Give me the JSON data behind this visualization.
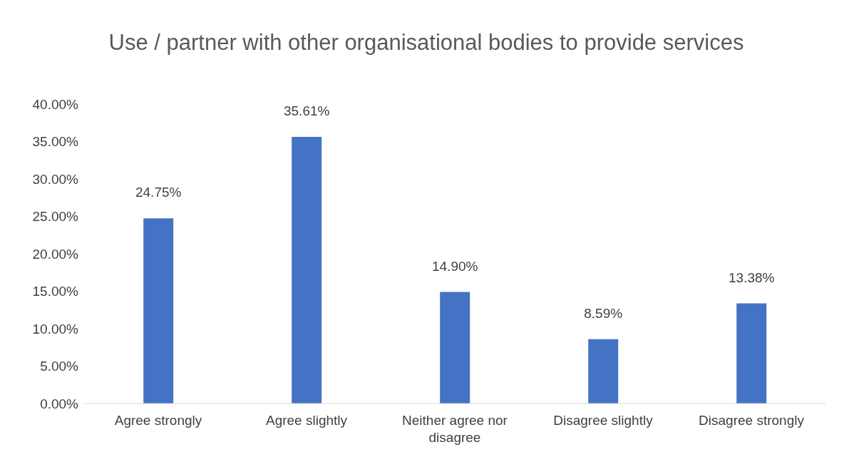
{
  "chart_data": {
    "type": "bar",
    "title": "Use / partner with other organisational bodies to provide services",
    "categories": [
      "Agree strongly",
      "Agree slightly",
      "Neither agree nor disagree",
      "Disagree slightly",
      "Disagree strongly"
    ],
    "values": [
      24.75,
      35.61,
      14.9,
      8.59,
      13.38
    ],
    "value_labels": [
      "24.75%",
      "35.61%",
      "14.90%",
      "8.59%",
      "13.38%"
    ],
    "color": "#4472c4",
    "ylim": [
      0,
      40
    ],
    "yticks": [
      {
        "value": 0,
        "label": "0.00%"
      },
      {
        "value": 5,
        "label": "5.00%"
      },
      {
        "value": 10,
        "label": "10.00%"
      },
      {
        "value": 15,
        "label": "15.00%"
      },
      {
        "value": 20,
        "label": "20.00%"
      },
      {
        "value": 25,
        "label": "25.00%"
      },
      {
        "value": 30,
        "label": "30.00%"
      },
      {
        "value": 35,
        "label": "35.00%"
      },
      {
        "value": 40,
        "label": "40.00%"
      }
    ],
    "grid": false,
    "legend": false
  }
}
